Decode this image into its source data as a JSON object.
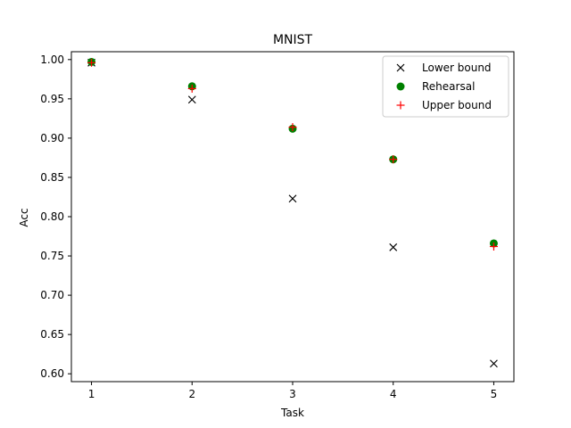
{
  "chart_data": {
    "type": "scatter",
    "title": "MNIST",
    "xlabel": "Task",
    "ylabel": "Acc",
    "xlim": [
      0.8,
      5.2
    ],
    "ylim": [
      0.59,
      1.01
    ],
    "xticks": [
      1,
      2,
      3,
      4,
      5
    ],
    "yticks": [
      0.6,
      0.65,
      0.7,
      0.75,
      0.8,
      0.85,
      0.9,
      0.95,
      1.0
    ],
    "ytick_labels": [
      "0.60",
      "0.65",
      "0.70",
      "0.75",
      "0.80",
      "0.85",
      "0.90",
      "0.95",
      "1.00"
    ],
    "xtick_labels": [
      "1",
      "2",
      "3",
      "4",
      "5"
    ],
    "grid": false,
    "legend_position": "top-right",
    "x": [
      1,
      2,
      3,
      4,
      5
    ],
    "series": [
      {
        "name": "Lower bound",
        "marker": "x",
        "color": "#000000",
        "values": [
          0.996,
          0.949,
          0.823,
          0.761,
          0.613
        ]
      },
      {
        "name": "Rehearsal",
        "marker": "o",
        "color": "#008000",
        "values": [
          0.997,
          0.966,
          0.912,
          0.873,
          0.766
        ]
      },
      {
        "name": "Upper bound",
        "marker": "+",
        "color": "#ff0000",
        "values": [
          0.996,
          0.963,
          0.914,
          0.873,
          0.762
        ]
      }
    ]
  }
}
